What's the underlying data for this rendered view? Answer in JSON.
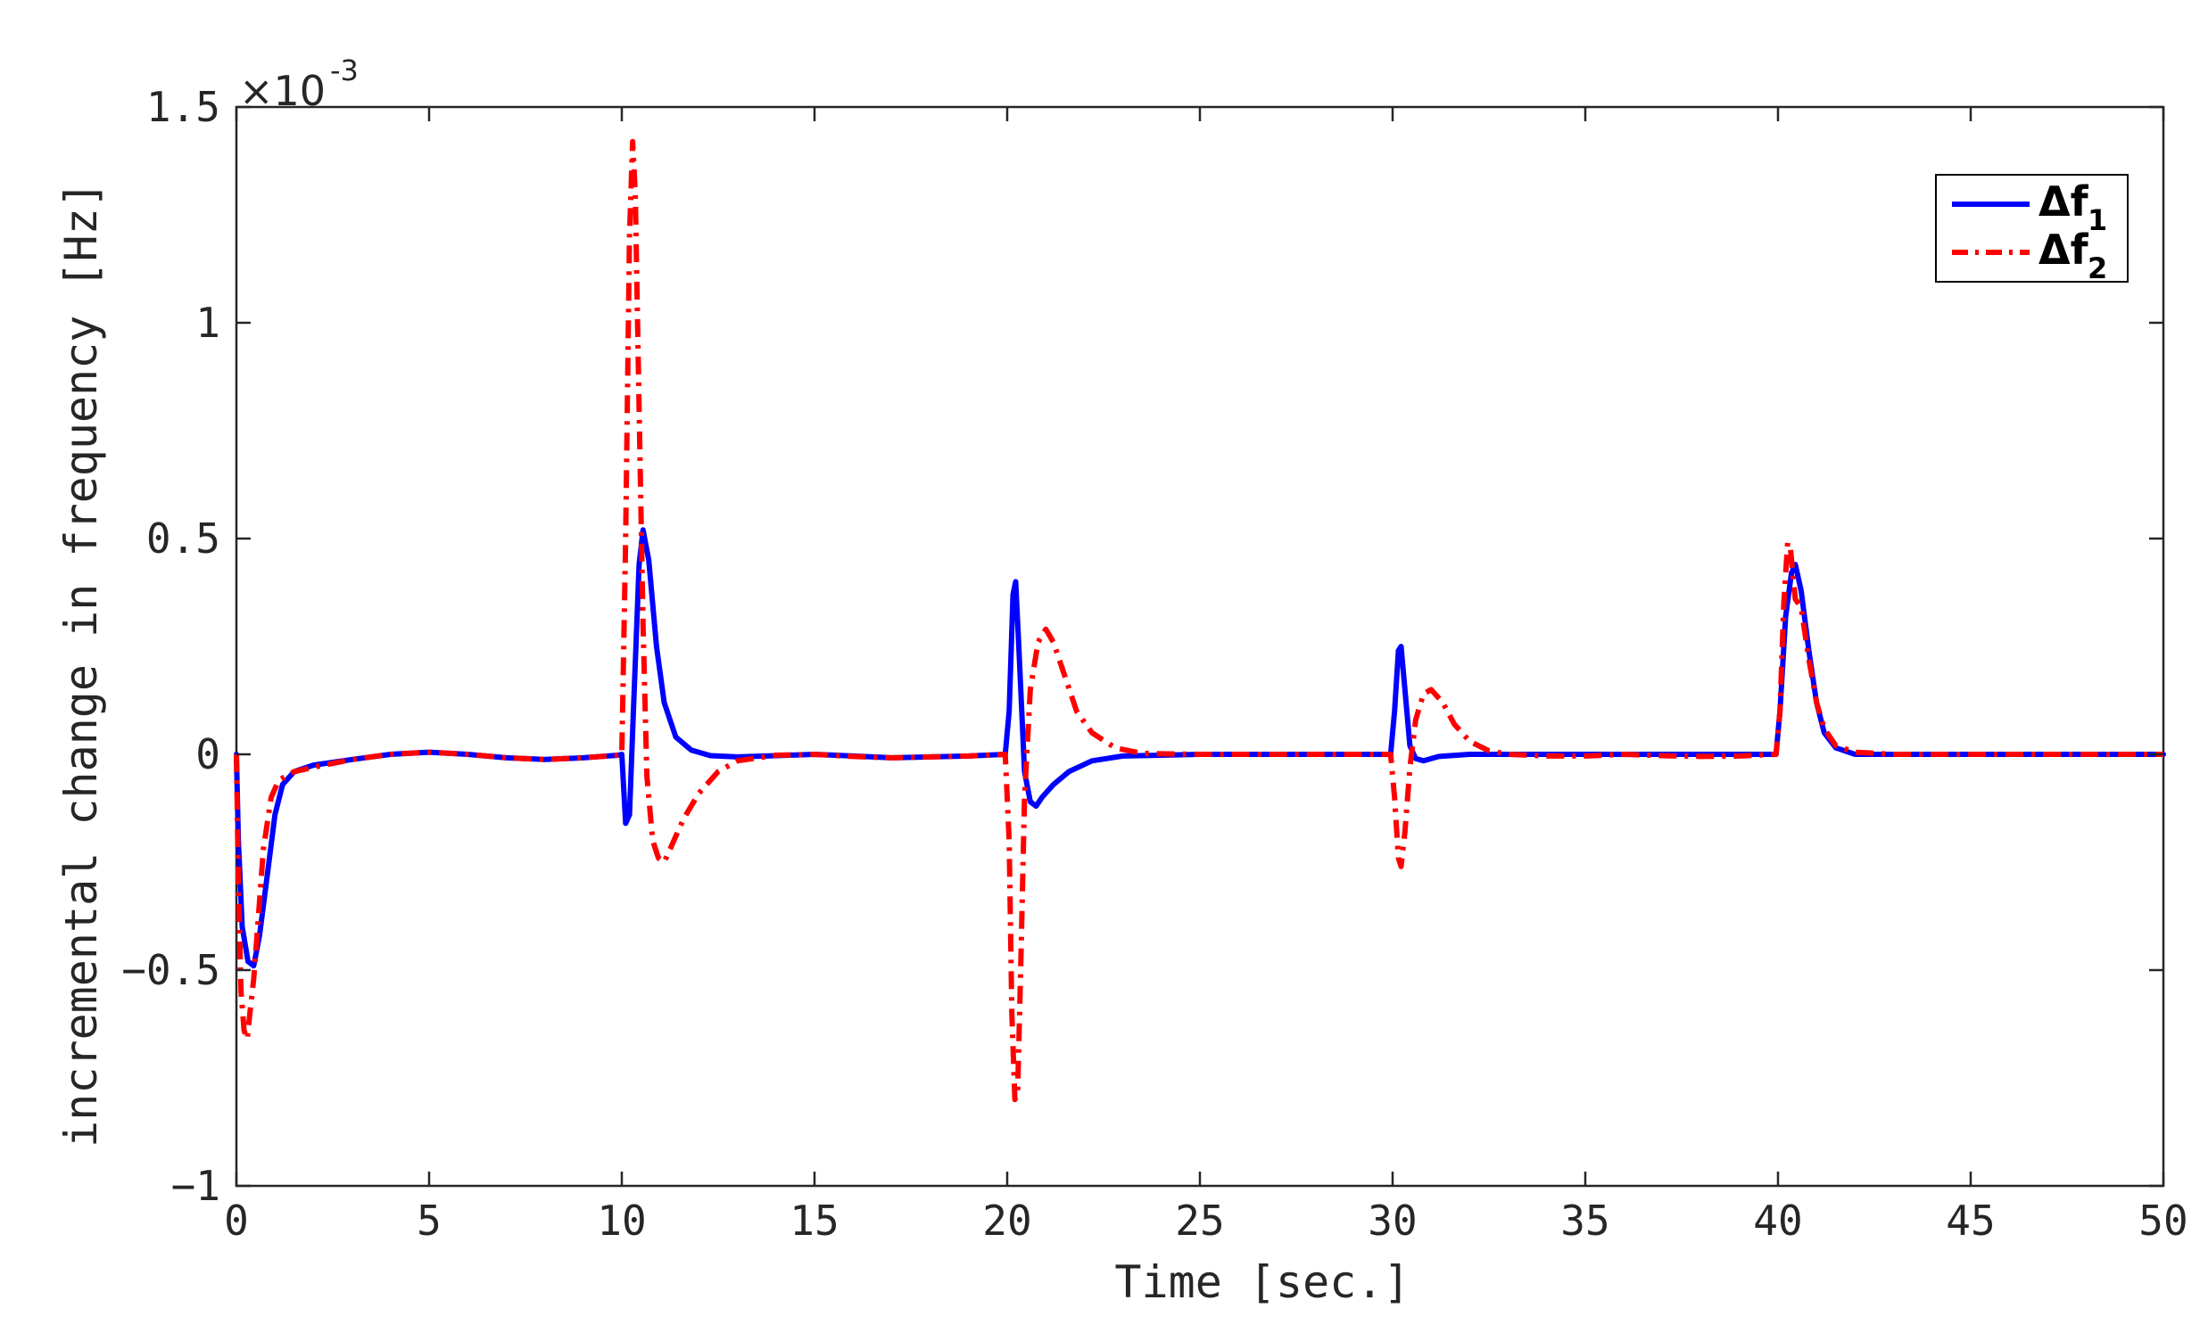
{
  "chart_data": {
    "type": "line",
    "xlabel": "Time [sec.]",
    "ylabel": "incremental change in frequency [Hz]",
    "xlim": [
      0,
      50
    ],
    "ylim": [
      -0.001,
      0.0015
    ],
    "y_multiplier": "×10",
    "y_multiplier_exponent": "-3",
    "xticks": [
      0,
      5,
      10,
      15,
      20,
      25,
      30,
      35,
      40,
      45,
      50
    ],
    "xtick_labels": [
      "0",
      "5",
      "10",
      "15",
      "20",
      "25",
      "30",
      "35",
      "40",
      "45",
      "50"
    ],
    "yticks": [
      -0.001,
      -0.0005,
      0,
      0.0005,
      0.001,
      0.0015
    ],
    "ytick_labels": [
      "−1",
      "−0.5",
      "0",
      "0.5",
      "1",
      "1.5"
    ],
    "grid": false,
    "legend_position": "top-right",
    "series": [
      {
        "name": "Δf",
        "subscript": "1",
        "color": "#0000ff",
        "style": "solid",
        "points": [
          [
            0,
            0
          ],
          [
            0.05,
            -0.0002
          ],
          [
            0.15,
            -0.0004
          ],
          [
            0.3,
            -0.00048
          ],
          [
            0.45,
            -0.00049
          ],
          [
            0.6,
            -0.00042
          ],
          [
            0.8,
            -0.00028
          ],
          [
            1.0,
            -0.00014
          ],
          [
            1.2,
            -7e-05
          ],
          [
            1.5,
            -4e-05
          ],
          [
            2.0,
            -2.5e-05
          ],
          [
            3.0,
            -1.2e-05
          ],
          [
            4.0,
            0.0
          ],
          [
            5.0,
            5e-06
          ],
          [
            6.0,
            0.0
          ],
          [
            7.0,
            -8e-06
          ],
          [
            8.0,
            -1.2e-05
          ],
          [
            9.0,
            -8e-06
          ],
          [
            9.9,
            -2e-06
          ],
          [
            10.0,
            0.0
          ],
          [
            10.1,
            -0.00016
          ],
          [
            10.2,
            -0.00014
          ],
          [
            10.3,
            0.0001
          ],
          [
            10.45,
            0.00044
          ],
          [
            10.55,
            0.00052
          ],
          [
            10.7,
            0.00045
          ],
          [
            10.9,
            0.00025
          ],
          [
            11.1,
            0.00012
          ],
          [
            11.4,
            4e-05
          ],
          [
            11.8,
            1e-05
          ],
          [
            12.3,
            -3e-06
          ],
          [
            13.0,
            -6e-06
          ],
          [
            14.0,
            -3e-06
          ],
          [
            15.0,
            0.0
          ],
          [
            16.0,
            -4e-06
          ],
          [
            17.0,
            -8e-06
          ],
          [
            18.0,
            -6e-06
          ],
          [
            19.0,
            -4e-06
          ],
          [
            19.95,
            0.0
          ],
          [
            20.05,
            0.0001
          ],
          [
            20.15,
            0.00037
          ],
          [
            20.22,
            0.0004
          ],
          [
            20.3,
            0.00025
          ],
          [
            20.45,
            -4e-05
          ],
          [
            20.6,
            -0.00011
          ],
          [
            20.75,
            -0.00012
          ],
          [
            20.9,
            -0.0001
          ],
          [
            21.2,
            -7e-05
          ],
          [
            21.6,
            -4e-05
          ],
          [
            22.2,
            -1.5e-05
          ],
          [
            23.0,
            -4e-06
          ],
          [
            24.0,
            -2e-06
          ],
          [
            25.0,
            0.0
          ],
          [
            27.0,
            0.0
          ],
          [
            29.0,
            0.0
          ],
          [
            29.95,
            0.0
          ],
          [
            30.05,
            0.0001
          ],
          [
            30.15,
            0.00024
          ],
          [
            30.22,
            0.00025
          ],
          [
            30.32,
            0.00015
          ],
          [
            30.45,
            2e-05
          ],
          [
            30.6,
            -1e-05
          ],
          [
            30.8,
            -1.5e-05
          ],
          [
            31.2,
            -5e-06
          ],
          [
            32.0,
            0.0
          ],
          [
            34.0,
            0.0
          ],
          [
            36.0,
            0.0
          ],
          [
            38.0,
            0.0
          ],
          [
            39.95,
            0.0
          ],
          [
            40.05,
            0.0001
          ],
          [
            40.2,
            0.00032
          ],
          [
            40.35,
            0.00042
          ],
          [
            40.45,
            0.00044
          ],
          [
            40.6,
            0.00038
          ],
          [
            40.8,
            0.00024
          ],
          [
            41.0,
            0.00012
          ],
          [
            41.2,
            5e-05
          ],
          [
            41.5,
            1.5e-05
          ],
          [
            42.0,
            0.0
          ],
          [
            43.0,
            0.0
          ],
          [
            45.0,
            0.0
          ],
          [
            47.0,
            0.0
          ],
          [
            50.0,
            0.0
          ]
        ]
      },
      {
        "name": "Δf",
        "subscript": "2",
        "color": "#ff0000",
        "style": "dash-dot",
        "points": [
          [
            0,
            0
          ],
          [
            0.05,
            -0.0003
          ],
          [
            0.12,
            -0.00055
          ],
          [
            0.2,
            -0.00064
          ],
          [
            0.28,
            -0.00066
          ],
          [
            0.35,
            -0.0006
          ],
          [
            0.45,
            -0.00052
          ],
          [
            0.55,
            -0.0004
          ],
          [
            0.7,
            -0.00022
          ],
          [
            0.9,
            -0.0001
          ],
          [
            1.1,
            -6e-05
          ],
          [
            1.5,
            -4e-05
          ],
          [
            2.0,
            -3e-05
          ],
          [
            3.0,
            -1.2e-05
          ],
          [
            4.0,
            0.0
          ],
          [
            5.0,
            5e-06
          ],
          [
            6.0,
            0.0
          ],
          [
            7.0,
            -8e-06
          ],
          [
            8.0,
            -1.2e-05
          ],
          [
            9.0,
            -8e-06
          ],
          [
            9.9,
            -2e-06
          ],
          [
            10.0,
            0.0
          ],
          [
            10.1,
            0.0005
          ],
          [
            10.2,
            0.0012
          ],
          [
            10.28,
            0.00142
          ],
          [
            10.35,
            0.0013
          ],
          [
            10.45,
            0.0008
          ],
          [
            10.55,
            0.0003
          ],
          [
            10.65,
            -5e-05
          ],
          [
            10.8,
            -0.0002
          ],
          [
            10.95,
            -0.00024
          ],
          [
            11.1,
            -0.00025
          ],
          [
            11.3,
            -0.00021
          ],
          [
            11.6,
            -0.00015
          ],
          [
            12.0,
            -9e-05
          ],
          [
            12.5,
            -4e-05
          ],
          [
            13.0,
            -1.5e-05
          ],
          [
            14.0,
            -2e-06
          ],
          [
            15.0,
            0.0
          ],
          [
            16.0,
            -5e-06
          ],
          [
            17.0,
            -8e-06
          ],
          [
            18.0,
            -6e-06
          ],
          [
            19.0,
            -4e-06
          ],
          [
            19.95,
            0.0
          ],
          [
            20.05,
            -0.0002
          ],
          [
            20.12,
            -0.0006
          ],
          [
            20.2,
            -0.0008
          ],
          [
            20.27,
            -0.00078
          ],
          [
            20.35,
            -0.0005
          ],
          [
            20.45,
            -0.0001
          ],
          [
            20.6,
            0.00015
          ],
          [
            20.8,
            0.00026
          ],
          [
            21.0,
            0.00029
          ],
          [
            21.2,
            0.00026
          ],
          [
            21.5,
            0.00018
          ],
          [
            21.8,
            0.0001
          ],
          [
            22.2,
            5e-05
          ],
          [
            22.8,
            1.5e-05
          ],
          [
            23.5,
            2e-06
          ],
          [
            25.0,
            0.0
          ],
          [
            27.0,
            0.0
          ],
          [
            29.0,
            0.0
          ],
          [
            29.95,
            0.0
          ],
          [
            30.05,
            -0.0001
          ],
          [
            30.15,
            -0.00024
          ],
          [
            30.22,
            -0.00026
          ],
          [
            30.32,
            -0.00018
          ],
          [
            30.45,
            -3e-05
          ],
          [
            30.6,
            8e-05
          ],
          [
            30.8,
            0.00014
          ],
          [
            31.0,
            0.00015
          ],
          [
            31.3,
            0.00012
          ],
          [
            31.6,
            7e-05
          ],
          [
            32.0,
            3e-05
          ],
          [
            32.5,
            8e-06
          ],
          [
            33.0,
            0.0
          ],
          [
            34.0,
            -4e-06
          ],
          [
            35.0,
            -4e-06
          ],
          [
            36.0,
            0.0
          ],
          [
            37.0,
            -3e-06
          ],
          [
            38.0,
            -5e-06
          ],
          [
            39.0,
            -4e-06
          ],
          [
            39.95,
            0.0
          ],
          [
            40.05,
            0.0001
          ],
          [
            40.15,
            0.00035
          ],
          [
            40.25,
            0.00049
          ],
          [
            40.32,
            0.00048
          ],
          [
            40.45,
            0.00036
          ],
          [
            40.6,
            0.00034
          ],
          [
            40.8,
            0.00022
          ],
          [
            41.0,
            0.00012
          ],
          [
            41.2,
            6e-05
          ],
          [
            41.5,
            2e-05
          ],
          [
            42.0,
            5e-06
          ],
          [
            43.0,
            0.0
          ],
          [
            45.0,
            0.0
          ],
          [
            47.0,
            0.0
          ],
          [
            50.0,
            0.0
          ]
        ]
      }
    ]
  }
}
